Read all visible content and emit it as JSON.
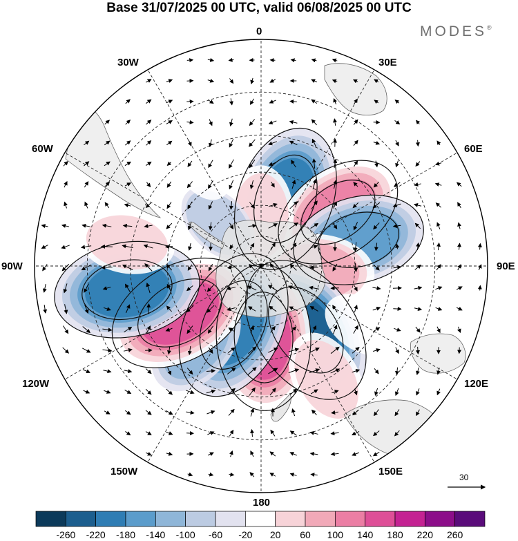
{
  "header": {
    "title": "Base 31/07/2025 00 UTC, valid 06/08/2025 00 UTC",
    "brand": "MODES",
    "brand_mark": "®"
  },
  "map": {
    "projection": "polar stereographic (south pole centered)",
    "longitude_labels": {
      "top": "0",
      "top_left": "30W",
      "top_right": "30E",
      "upper_left": "60W",
      "upper_right": "60E",
      "left": "90W",
      "right": "90E",
      "lower_left": "120W",
      "lower_right": "120E",
      "bottom_left": "150W",
      "bottom_right": "150E",
      "bottom": "180"
    },
    "reference_vector": "30",
    "anomaly_centers": [
      {
        "lon": 20,
        "lat": -55,
        "value": -190
      },
      {
        "lon": 55,
        "lat": -45,
        "value": 160
      },
      {
        "lon": 75,
        "lat": -42,
        "value": -160
      },
      {
        "lon": 95,
        "lat": -62,
        "value": 120
      },
      {
        "lon": 145,
        "lat": -52,
        "value": -220
      },
      {
        "lon": 178,
        "lat": -55,
        "value": 190
      },
      {
        "lon": -155,
        "lat": -58,
        "value": -200
      },
      {
        "lon": -140,
        "lat": -42,
        "value": -110
      },
      {
        "lon": -120,
        "lat": -45,
        "value": 190
      },
      {
        "lon": -100,
        "lat": -28,
        "value": -190
      },
      {
        "lon": -80,
        "lat": -28,
        "value": 80
      },
      {
        "lon": 0,
        "lat": -65,
        "value": 90
      },
      {
        "lon": -45,
        "lat": -60,
        "value": -60
      },
      {
        "lon": 120,
        "lat": -35,
        "value": 50
      },
      {
        "lon": 150,
        "lat": -30,
        "value": 90
      },
      {
        "lon": -30,
        "lat": -35,
        "value": 40
      }
    ]
  },
  "colorbar": {
    "ticks": [
      "-260",
      "-220",
      "-180",
      "-140",
      "-100",
      "-60",
      "-20",
      "20",
      "60",
      "100",
      "140",
      "180",
      "220",
      "260"
    ],
    "colors": [
      "#0c3a5a",
      "#1c5e8e",
      "#2f7db4",
      "#5b9ccb",
      "#8fb6d8",
      "#bccbe2",
      "#e2e2ef",
      "#ffffff",
      "#f7d3d8",
      "#f1a9b8",
      "#eb7ea4",
      "#de4f97",
      "#c42292",
      "#8c0e89",
      "#5a0c7a"
    ]
  }
}
